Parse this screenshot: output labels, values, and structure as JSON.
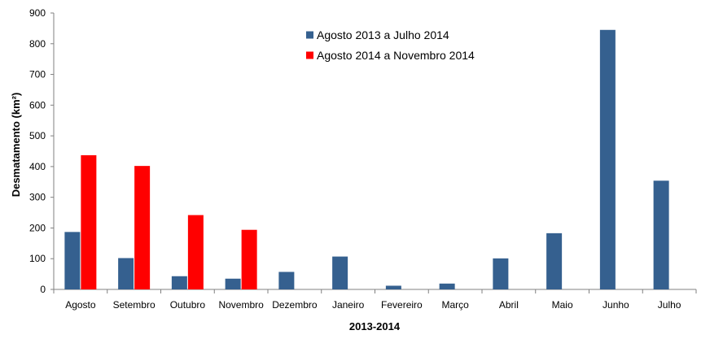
{
  "chart_data": {
    "type": "bar",
    "categories": [
      "Agosto",
      "Setembro",
      "Outubro",
      "Novembro",
      "Dezembro",
      "Janeiro",
      "Fevereiro",
      "Março",
      "Abril",
      "Maio",
      "Junho",
      "Julho"
    ],
    "series": [
      {
        "name": "Agosto 2013 a Julho 2014",
        "color": "#35608f",
        "values": [
          187,
          102,
          43,
          35,
          57,
          107,
          12,
          19,
          101,
          183,
          845,
          354
        ]
      },
      {
        "name": "Agosto 2014 a Novembro 2014",
        "color": "#ff0000",
        "values": [
          437,
          402,
          242,
          194,
          null,
          null,
          null,
          null,
          null,
          null,
          null,
          null
        ]
      }
    ],
    "xlabel": "2013-2014",
    "ylabel": "Desmatamento (km²)",
    "ylim": [
      0,
      900
    ],
    "yticks": [
      0,
      100,
      200,
      300,
      400,
      500,
      600,
      700,
      800,
      900
    ],
    "legend_position": "top-center",
    "grid": false
  }
}
